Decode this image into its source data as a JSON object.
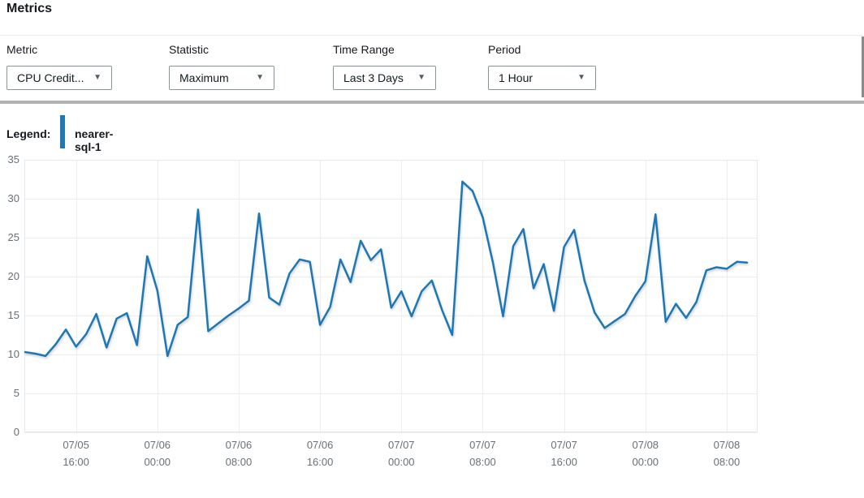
{
  "header": {
    "title": "Metrics"
  },
  "filters": [
    {
      "label": "Metric",
      "value": "CPU Credit..."
    },
    {
      "label": "Statistic",
      "value": "Maximum"
    },
    {
      "label": "Time Range",
      "value": "Last 3 Days"
    },
    {
      "label": "Period",
      "value": "1 Hour"
    }
  ],
  "dropdown_caret_icon": "▼",
  "legend": {
    "label": "Legend:",
    "series_name": "nearer-sql-1",
    "color": "#1f77b4"
  },
  "colors": {
    "line": "#1f77b4",
    "axis_text": "#687078",
    "gridline": "#ededed",
    "frame": "#e7e7e7",
    "text": "#16191f"
  },
  "chart_data": {
    "type": "line",
    "title": "",
    "xlabel": "",
    "ylabel": "",
    "ylim": [
      0,
      35
    ],
    "y_ticks": [
      0,
      5,
      10,
      15,
      20,
      25,
      30,
      35
    ],
    "grid": true,
    "legend_position": "top-left",
    "x_start": "07/05 11:00",
    "x_interval": "1 hour",
    "x_tick_indices": [
      5,
      13,
      21,
      29,
      37,
      45,
      53,
      61,
      69
    ],
    "x_tick_labels": [
      [
        "07/05",
        "16:00"
      ],
      [
        "07/06",
        "00:00"
      ],
      [
        "07/06",
        "08:00"
      ],
      [
        "07/06",
        "16:00"
      ],
      [
        "07/07",
        "00:00"
      ],
      [
        "07/07",
        "08:00"
      ],
      [
        "07/07",
        "16:00"
      ],
      [
        "07/08",
        "00:00"
      ],
      [
        "07/08",
        "08:00"
      ]
    ],
    "series": [
      {
        "name": "nearer-sql-1",
        "color": "#1f77b4",
        "values": [
          10.3,
          10.1,
          9.8,
          11.3,
          13.2,
          11.0,
          12.6,
          15.2,
          10.9,
          14.6,
          15.3,
          11.2,
          22.6,
          18.2,
          9.8,
          13.8,
          14.8,
          28.6,
          13.0,
          14.0,
          15.0,
          15.9,
          16.9,
          28.1,
          17.3,
          16.4,
          20.4,
          22.2,
          21.9,
          13.8,
          16.1,
          22.2,
          19.3,
          24.6,
          22.1,
          23.5,
          16.0,
          18.1,
          14.9,
          18.1,
          19.5,
          15.7,
          12.5,
          32.2,
          31.0,
          27.6,
          21.8,
          14.9,
          23.9,
          26.1,
          18.5,
          21.6,
          15.6,
          23.8,
          26.0,
          19.5,
          15.4,
          13.4,
          14.3,
          15.2,
          17.5,
          19.4,
          28.0,
          14.2,
          16.5,
          14.7,
          16.7,
          20.8,
          21.2,
          21.0,
          21.9,
          21.8
        ]
      }
    ]
  }
}
